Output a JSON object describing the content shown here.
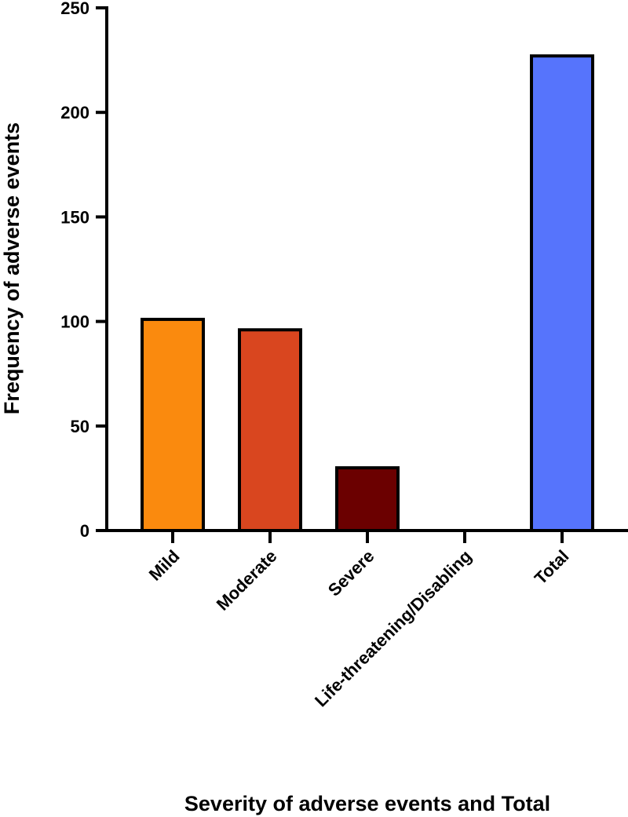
{
  "chart_data": {
    "type": "bar",
    "title": "",
    "xlabel": "Severity of adverse events and Total",
    "ylabel": "Frequency of adverse events",
    "categories": [
      "Mild",
      "Moderate",
      "Severe",
      "Life-threatening/Disabling",
      "Total"
    ],
    "values": [
      101,
      96,
      30,
      0,
      227
    ],
    "colors": [
      "#FA8A0E",
      "#D9461F",
      "#6B0000",
      "#FFFFFF",
      "#5674FC"
    ],
    "ylim": [
      0,
      250
    ],
    "yticks": [
      0,
      50,
      100,
      150,
      200,
      250
    ],
    "grid": false,
    "legend": "none"
  }
}
